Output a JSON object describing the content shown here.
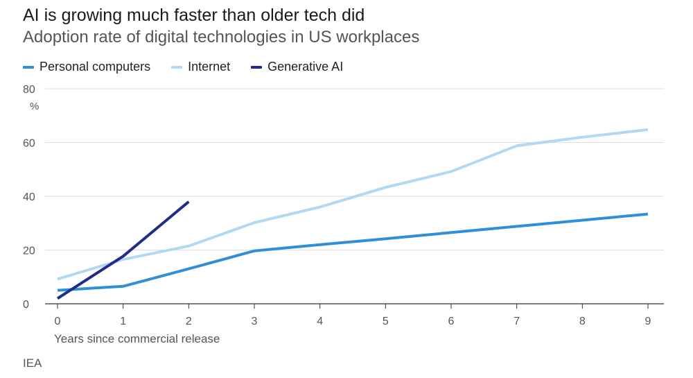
{
  "chart_data": {
    "type": "line",
    "title": "AI is growing much faster than older tech did",
    "subtitle": "Adoption rate of digital technologies in US workplaces",
    "xlabel": "Years since commercial release",
    "ylabel": "%",
    "xlim": [
      0,
      9
    ],
    "ylim": [
      0,
      80
    ],
    "x_ticks": [
      0,
      1,
      2,
      3,
      4,
      5,
      6,
      7,
      8,
      9
    ],
    "y_ticks": [
      0,
      20,
      40,
      60,
      80
    ],
    "grid": "horizontal",
    "legend_position": "top-left",
    "series": [
      {
        "name": "Personal computers",
        "color": "#2f8fd8",
        "x": [
          0,
          1,
          2,
          3,
          4,
          5,
          6,
          7,
          8,
          9
        ],
        "values": [
          5,
          6.5,
          13,
          19.7,
          22,
          24.2,
          26.5,
          28.8,
          31.1,
          33.4
        ]
      },
      {
        "name": "Internet",
        "color": "#b3d9f2",
        "x": [
          0,
          1,
          2,
          3,
          4,
          5,
          6,
          7,
          8,
          9
        ],
        "values": [
          9.2,
          16.5,
          21.5,
          30.2,
          36,
          43.3,
          49.2,
          58.8,
          62,
          64.8
        ]
      },
      {
        "name": "Generative AI",
        "color": "#1f2d8a",
        "x": [
          0,
          1,
          2
        ],
        "values": [
          2,
          17.7,
          38
        ]
      }
    ],
    "source": "IEA"
  }
}
